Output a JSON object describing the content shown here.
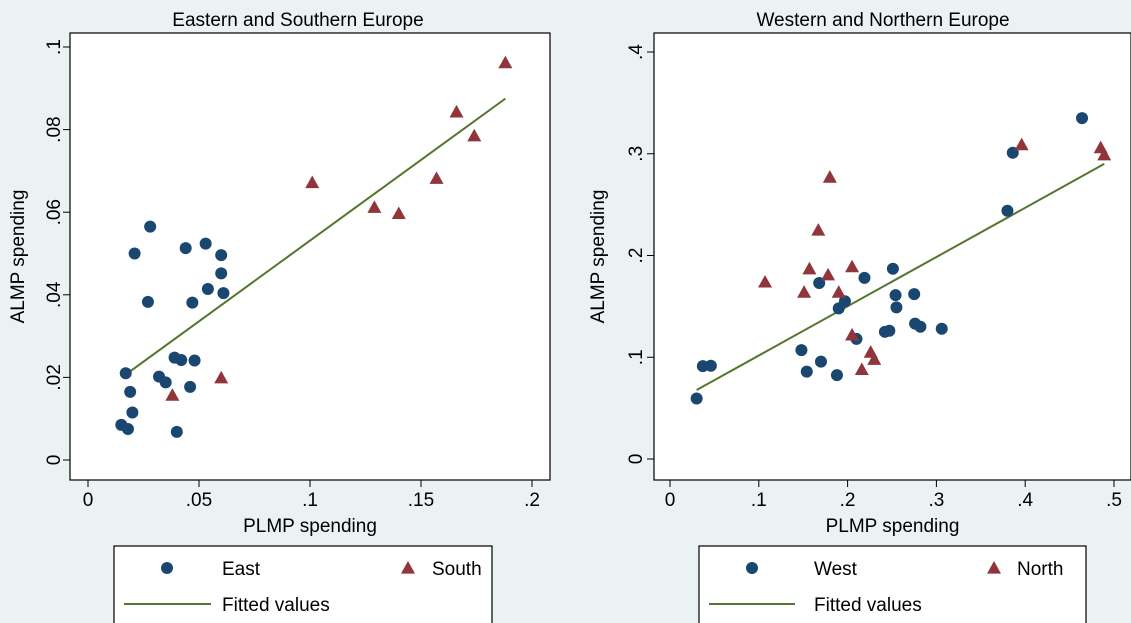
{
  "chart_data": [
    {
      "type": "scatter",
      "title": "Eastern and Southern Europe",
      "xlabel": "PLMP spending",
      "ylabel": "ALMP spending",
      "xlim": [
        0,
        0.2
      ],
      "ylim": [
        0,
        0.1
      ],
      "xticks": [
        0,
        0.05,
        0.1,
        0.15,
        0.2
      ],
      "xtick_labels": [
        "0",
        ".05",
        ".1",
        ".15",
        ".2"
      ],
      "yticks": [
        0,
        0.02,
        0.04,
        0.06,
        0.08,
        0.1
      ],
      "ytick_labels": [
        "0",
        ".02",
        ".04",
        ".06",
        ".08",
        ".1"
      ],
      "grid": false,
      "legend_position": "bottom",
      "series": [
        {
          "name": "East",
          "marker": "circle",
          "color": "#1a476f",
          "points": [
            [
              0.015,
              0.0085
            ],
            [
              0.017,
              0.021
            ],
            [
              0.018,
              0.0075
            ],
            [
              0.019,
              0.0165
            ],
            [
              0.02,
              0.0115
            ],
            [
              0.021,
              0.05
            ],
            [
              0.027,
              0.0383
            ],
            [
              0.028,
              0.0565
            ],
            [
              0.032,
              0.0202
            ],
            [
              0.035,
              0.0188
            ],
            [
              0.039,
              0.0248
            ],
            [
              0.04,
              0.0068
            ],
            [
              0.042,
              0.0242
            ],
            [
              0.044,
              0.0513
            ],
            [
              0.046,
              0.0177
            ],
            [
              0.047,
              0.0381
            ],
            [
              0.048,
              0.0241
            ],
            [
              0.053,
              0.0524
            ],
            [
              0.054,
              0.0414
            ],
            [
              0.06,
              0.0496
            ],
            [
              0.06,
              0.0452
            ],
            [
              0.061,
              0.0404
            ]
          ]
        },
        {
          "name": "South",
          "marker": "triangle",
          "color": "#90353b",
          "points": [
            [
              0.038,
              0.0157
            ],
            [
              0.06,
              0.0199
            ],
            [
              0.101,
              0.0672
            ],
            [
              0.129,
              0.0612
            ],
            [
              0.14,
              0.0597
            ],
            [
              0.157,
              0.0682
            ],
            [
              0.166,
              0.0843
            ],
            [
              0.174,
              0.0785
            ],
            [
              0.188,
              0.0962
            ]
          ]
        },
        {
          "name": "Fitted values",
          "type": "line",
          "color": "#55752f",
          "points": [
            [
              0.016,
              0.0203
            ],
            [
              0.188,
              0.0875
            ]
          ]
        }
      ],
      "legend": {
        "entries": [
          "East",
          "South",
          "Fitted values"
        ]
      }
    },
    {
      "type": "scatter",
      "title": "Western and Northern Europe",
      "xlabel": "PLMP spending",
      "ylabel": "ALMP spending",
      "xlim": [
        0,
        0.5
      ],
      "ylim": [
        0,
        0.4
      ],
      "xticks": [
        0,
        0.1,
        0.2,
        0.3,
        0.4,
        0.5
      ],
      "xtick_labels": [
        "0",
        ".1",
        ".2",
        ".3",
        ".4",
        ".5"
      ],
      "yticks": [
        0,
        0.1,
        0.2,
        0.3,
        0.4
      ],
      "ytick_labels": [
        "0",
        ".1",
        ".2",
        ".3",
        ".4"
      ],
      "grid": false,
      "legend_position": "bottom",
      "series": [
        {
          "name": "West",
          "marker": "circle",
          "color": "#1a476f",
          "points": [
            [
              0.03,
              0.0595
            ],
            [
              0.037,
              0.0913
            ],
            [
              0.046,
              0.0916
            ],
            [
              0.148,
              0.107
            ],
            [
              0.154,
              0.0859
            ],
            [
              0.168,
              0.173
            ],
            [
              0.17,
              0.0957
            ],
            [
              0.188,
              0.0824
            ],
            [
              0.19,
              0.148
            ],
            [
              0.197,
              0.155
            ],
            [
              0.21,
              0.118
            ],
            [
              0.219,
              0.178
            ],
            [
              0.242,
              0.125
            ],
            [
              0.247,
              0.126
            ],
            [
              0.251,
              0.187
            ],
            [
              0.254,
              0.161
            ],
            [
              0.255,
              0.149
            ],
            [
              0.275,
              0.162
            ],
            [
              0.276,
              0.133
            ],
            [
              0.282,
              0.13
            ],
            [
              0.306,
              0.128
            ],
            [
              0.38,
              0.244
            ],
            [
              0.386,
              0.301
            ],
            [
              0.464,
              0.335
            ]
          ]
        },
        {
          "name": "North",
          "marker": "triangle",
          "color": "#90353b",
          "points": [
            [
              0.107,
              0.174
            ],
            [
              0.151,
              0.164
            ],
            [
              0.157,
              0.187
            ],
            [
              0.167,
              0.225
            ],
            [
              0.178,
              0.181
            ],
            [
              0.18,
              0.277
            ],
            [
              0.19,
              0.164
            ],
            [
              0.205,
              0.189
            ],
            [
              0.205,
              0.122
            ],
            [
              0.216,
              0.088
            ],
            [
              0.226,
              0.105
            ],
            [
              0.23,
              0.098
            ],
            [
              0.396,
              0.309
            ],
            [
              0.485,
              0.306
            ],
            [
              0.489,
              0.299
            ]
          ]
        },
        {
          "name": "Fitted values",
          "type": "line",
          "color": "#55752f",
          "points": [
            [
              0.03,
              0.0678
            ],
            [
              0.489,
              0.29
            ]
          ]
        }
      ],
      "legend": {
        "entries": [
          "West",
          "North",
          "Fitted values"
        ]
      }
    }
  ]
}
